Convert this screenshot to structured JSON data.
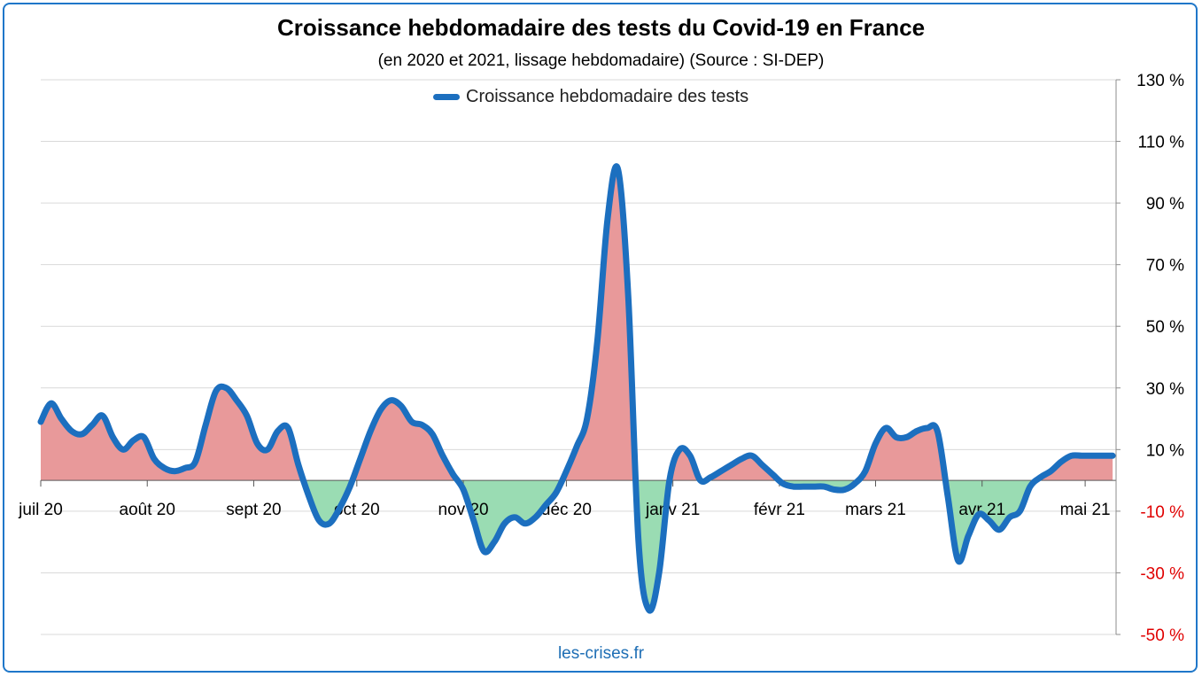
{
  "chart_data": {
    "type": "area",
    "title": "Croissance hebdomadaire des tests du Covid-19 en France",
    "subtitle": "(en 2020 et 2021, lissage hebdomadaire) (Source : SI-DEP)",
    "source_label": "les-crises.fr",
    "xlabel": "",
    "ylabel": "",
    "ylim": [
      -50,
      130
    ],
    "ytick_values": [
      130,
      110,
      90,
      70,
      50,
      30,
      10,
      -10,
      -30,
      -50
    ],
    "yticks": [
      "130 %",
      "110 %",
      "90 %",
      "70 %",
      "50 %",
      "30 %",
      "10 %",
      "-10 %",
      "-30 %",
      "-50 %"
    ],
    "xlim": [
      "2020-07-01",
      "2021-05-10"
    ],
    "categories": [
      "juil 20",
      "août 20",
      "sept 20",
      "oct 20",
      "nov 20",
      "déc 20",
      "janv 21",
      "févr 21",
      "mars 21",
      "avr 21",
      "mai 21"
    ],
    "category_dates": [
      "2020-07-01",
      "2020-08-01",
      "2020-09-01",
      "2020-10-01",
      "2020-11-01",
      "2020-12-01",
      "2021-01-01",
      "2021-02-01",
      "2021-03-01",
      "2021-04-01",
      "2021-05-01"
    ],
    "grid": true,
    "legend_position": "top-center",
    "colors": {
      "line": "#1c6fbf",
      "positive_fill": "#e8999a",
      "negative_fill": "#9adcb3",
      "negative_tick": "#e00000",
      "grid": "#d9d9d9"
    },
    "series": [
      {
        "name": "Croissance hebdomadaire des tests",
        "x": [
          "2020-07-01",
          "2020-07-04",
          "2020-07-07",
          "2020-07-10",
          "2020-07-13",
          "2020-07-16",
          "2020-07-19",
          "2020-07-22",
          "2020-07-25",
          "2020-07-28",
          "2020-07-31",
          "2020-08-03",
          "2020-08-06",
          "2020-08-09",
          "2020-08-12",
          "2020-08-15",
          "2020-08-18",
          "2020-08-21",
          "2020-08-24",
          "2020-08-27",
          "2020-08-30",
          "2020-09-02",
          "2020-09-05",
          "2020-09-08",
          "2020-09-11",
          "2020-09-14",
          "2020-09-17",
          "2020-09-20",
          "2020-09-23",
          "2020-09-26",
          "2020-09-29",
          "2020-10-02",
          "2020-10-05",
          "2020-10-08",
          "2020-10-11",
          "2020-10-14",
          "2020-10-17",
          "2020-10-20",
          "2020-10-23",
          "2020-10-26",
          "2020-10-29",
          "2020-11-01",
          "2020-11-04",
          "2020-11-07",
          "2020-11-10",
          "2020-11-13",
          "2020-11-16",
          "2020-11-19",
          "2020-11-22",
          "2020-11-25",
          "2020-11-28",
          "2020-12-01",
          "2020-12-04",
          "2020-12-07",
          "2020-12-10",
          "2020-12-13",
          "2020-12-16",
          "2020-12-19",
          "2020-12-22",
          "2020-12-25",
          "2020-12-28",
          "2020-12-31",
          "2021-01-03",
          "2021-01-06",
          "2021-01-09",
          "2021-01-12",
          "2021-01-15",
          "2021-01-18",
          "2021-01-21",
          "2021-01-24",
          "2021-01-27",
          "2021-01-30",
          "2021-02-02",
          "2021-02-05",
          "2021-02-08",
          "2021-02-11",
          "2021-02-14",
          "2021-02-17",
          "2021-02-20",
          "2021-02-23",
          "2021-02-26",
          "2021-03-01",
          "2021-03-04",
          "2021-03-07",
          "2021-03-10",
          "2021-03-13",
          "2021-03-16",
          "2021-03-19",
          "2021-03-22",
          "2021-03-25",
          "2021-03-28",
          "2021-03-31",
          "2021-04-03",
          "2021-04-06",
          "2021-04-09",
          "2021-04-12",
          "2021-04-15",
          "2021-04-18",
          "2021-04-21",
          "2021-04-24",
          "2021-04-27",
          "2021-04-30",
          "2021-05-03",
          "2021-05-06",
          "2021-05-09"
        ],
        "y": [
          19,
          25,
          20,
          16,
          15,
          18,
          21,
          14,
          10,
          13,
          14,
          7,
          4,
          3,
          4,
          6,
          18,
          29,
          30,
          26,
          21,
          12,
          10,
          16,
          17,
          5,
          -5,
          -13,
          -14,
          -9,
          -2,
          7,
          16,
          23,
          26,
          24,
          19,
          18,
          15,
          8,
          2,
          -3,
          -13,
          -23,
          -20,
          -14,
          -12,
          -14,
          -12,
          -8,
          -4,
          3,
          11,
          20,
          45,
          85,
          101,
          60,
          -20,
          -42,
          -30,
          0,
          10,
          8,
          0,
          1,
          3,
          5,
          7,
          8,
          5,
          2,
          -1,
          -2,
          -2,
          -2,
          -2,
          -3,
          -3,
          -1,
          3,
          12,
          17,
          14,
          14,
          16,
          17,
          16,
          -5,
          -26,
          -18,
          -11,
          -13,
          -16,
          -12,
          -10,
          -2,
          1,
          3,
          6,
          8,
          8,
          8,
          8,
          8
        ]
      }
    ]
  }
}
